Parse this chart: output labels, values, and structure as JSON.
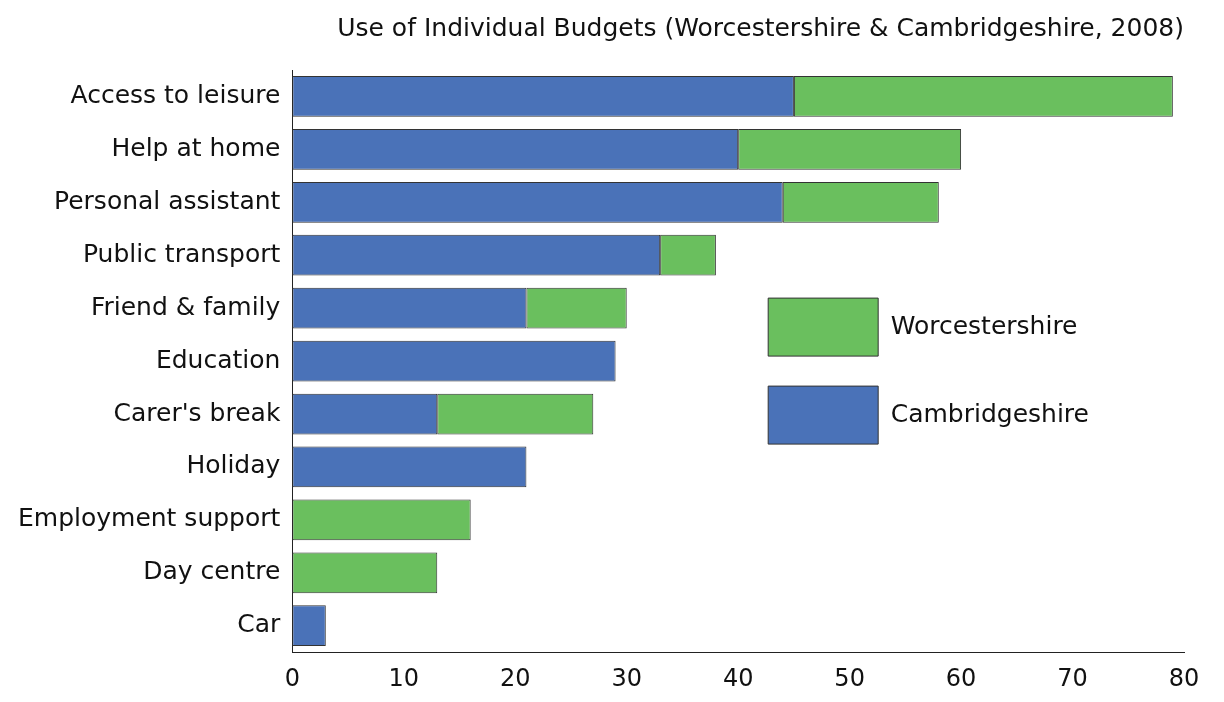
{
  "chart_data": {
    "type": "bar",
    "orientation": "horizontal",
    "stacked": true,
    "title": "Use of Individual Budgets (Worcestershire & Cambridgeshire, 2008)",
    "categories": [
      "Access to leisure",
      "Help at home",
      "Personal assistant",
      "Public transport",
      "Friend & family",
      "Education",
      "Carer's break",
      "Holiday",
      "Employment support",
      "Day centre",
      "Car"
    ],
    "series": [
      {
        "name": "Cambridgeshire",
        "color": "#4a72b8",
        "values": [
          45,
          40,
          44,
          33,
          21,
          29,
          13,
          21,
          null,
          null,
          3
        ]
      },
      {
        "name": "Worcestershire",
        "color": "#6abf5e",
        "values": [
          34,
          20,
          14,
          5,
          9,
          null,
          14,
          null,
          16,
          13,
          null
        ]
      }
    ],
    "xlim": [
      0,
      80
    ],
    "xticks": [
      0,
      10,
      20,
      30,
      40,
      50,
      60,
      70,
      80
    ],
    "grid": false,
    "legend": "right"
  }
}
